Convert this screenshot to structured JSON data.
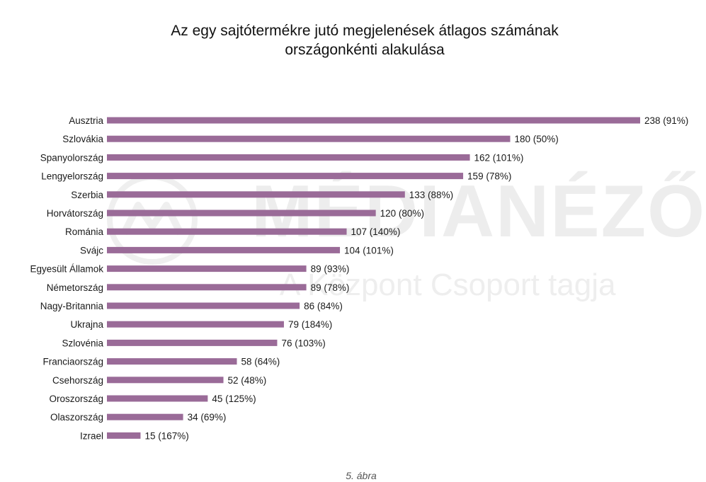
{
  "title_lines": [
    "Az egy sajtótermékre jutó megjelenések átlagos számának",
    "országonkénti alakulása"
  ],
  "watermark": {
    "main": "MÉDIANÉZŐ",
    "sub": "A Központ Csoport tagja"
  },
  "caption": "5. ábra",
  "colors": {
    "bar": "#9a6b98",
    "label": "#1a1a1a",
    "watermark": "#ececec"
  },
  "chart_data": {
    "type": "bar",
    "orientation": "horizontal",
    "title": "Az egy sajtótermékre jutó megjelenések átlagos számának országonkénti alakulása",
    "xlabel": "",
    "ylabel": "",
    "grid": false,
    "legend": "none",
    "xlim": [
      0,
      238
    ],
    "categories": [
      "Ausztria",
      "Szlovákia",
      "Spanyolország",
      "Lengyelország",
      "Szerbia",
      "Horvátország",
      "Románia",
      "Svájc",
      "Egyesült Államok",
      "Németország",
      "Nagy-Britannia",
      "Ukrajna",
      "Szlovénia",
      "Franciaország",
      "Csehország",
      "Oroszország",
      "Olaszország",
      "Izrael"
    ],
    "values": [
      238,
      180,
      162,
      159,
      133,
      120,
      107,
      104,
      89,
      89,
      86,
      79,
      76,
      58,
      52,
      45,
      34,
      15
    ],
    "data_labels": [
      "238 (91%)",
      "180 (50%)",
      "162 (101%)",
      "159 (78%)",
      "133 (88%)",
      "120 (80%)",
      "107 (140%)",
      "104 (101%)",
      "89 (93%)",
      "89 (78%)",
      "86 (84%)",
      "79 (184%)",
      "76 (103%)",
      "58 (64%)",
      "52 (48%)",
      "45 (125%)",
      "34 (69%)",
      "15 (167%)"
    ]
  }
}
